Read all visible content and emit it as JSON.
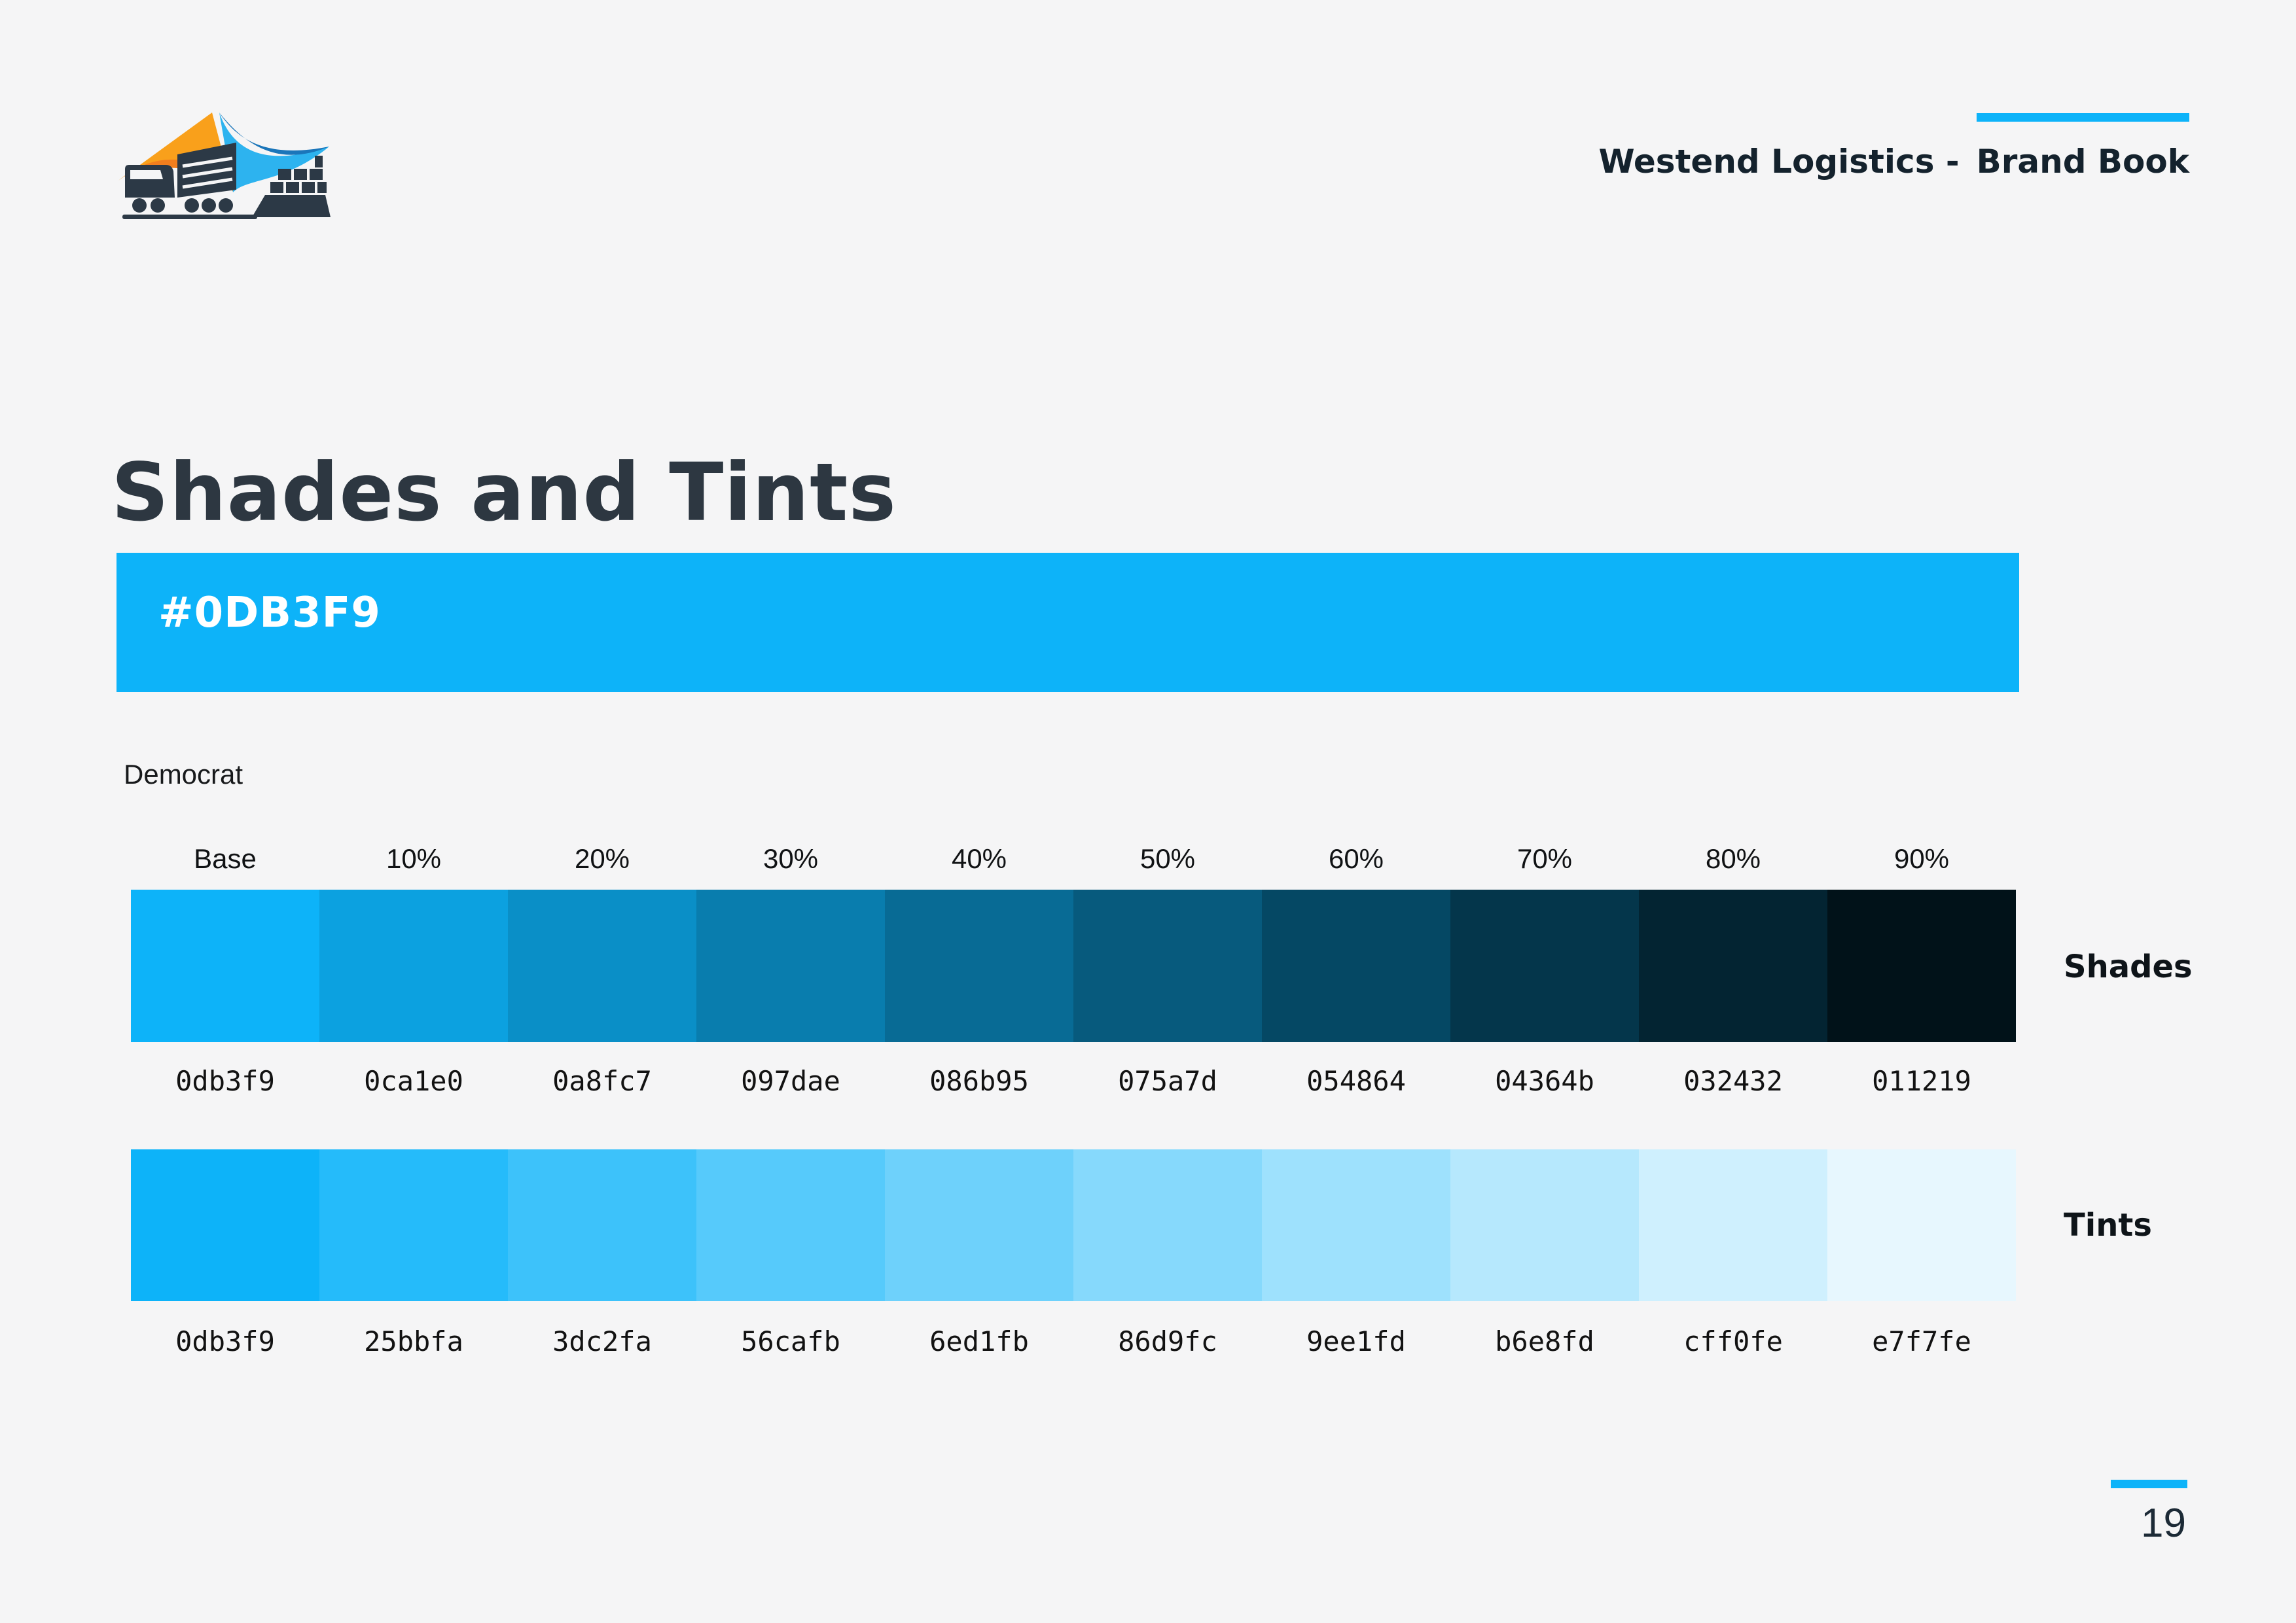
{
  "page": {
    "background": "#f5f5f6",
    "accent": "#0db3f9",
    "number": "19"
  },
  "header": {
    "left_text": "Westend Logistics -",
    "book_text": "Brand Book"
  },
  "logo": {
    "name": "westend-logistics-logo",
    "colors": {
      "orange_light": "#f9a01b",
      "orange_dark": "#f17e1e",
      "blue_dark": "#1b76ba",
      "blue_light": "#2db3ef",
      "silhouette": "#2c3946"
    }
  },
  "title": "Shades and Tints",
  "base_color": {
    "label": "#0DB3F9",
    "hex": "#0db3f9"
  },
  "palette": {
    "name": "Democrat",
    "columns": [
      "Base",
      "10%",
      "20%",
      "30%",
      "40%",
      "50%",
      "60%",
      "70%",
      "80%",
      "90%"
    ],
    "shades": {
      "label": "Shades",
      "hexes": [
        "0db3f9",
        "0ca1e0",
        "0a8fc7",
        "097dae",
        "086b95",
        "075a7d",
        "054864",
        "04364b",
        "032432",
        "011219"
      ]
    },
    "tints": {
      "label": "Tints",
      "hexes": [
        "0db3f9",
        "25bbfa",
        "3dc2fa",
        "56cafb",
        "6ed1fb",
        "86d9fc",
        "9ee1fd",
        "b6e8fd",
        "cff0fe",
        "e7f7fe"
      ]
    }
  }
}
